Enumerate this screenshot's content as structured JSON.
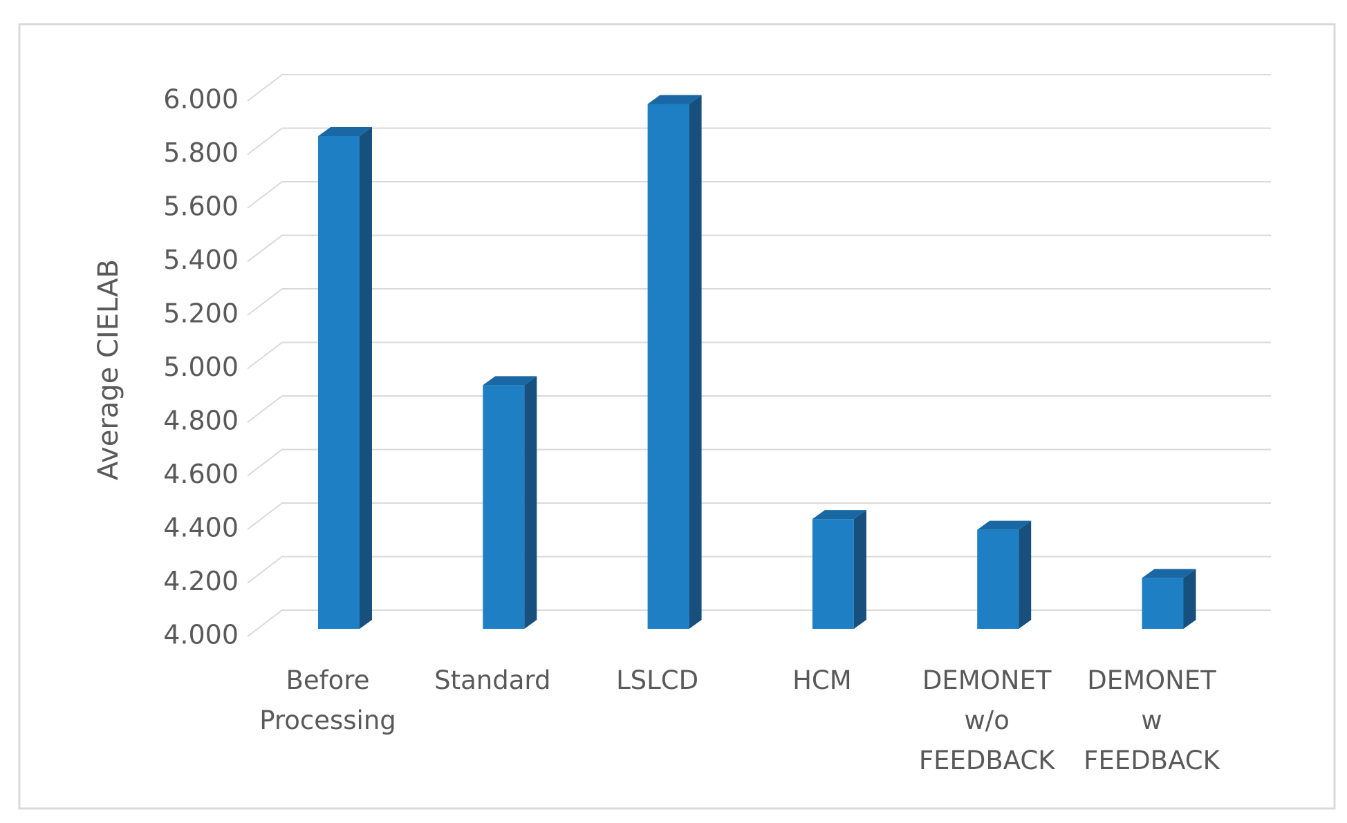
{
  "chart_data": {
    "type": "bar3d",
    "y_label": "Average CIELAB",
    "categories": [
      "Before Processing",
      "Standard",
      "LSLCD",
      "HCM",
      "DEMONET w/o FEEDBACK",
      "DEMONET w FEEDBACK"
    ],
    "values": [
      5.84,
      4.91,
      5.96,
      4.41,
      4.37,
      4.19
    ],
    "color": "#1f7fc4",
    "ylim": [
      4,
      6
    ],
    "yticks": [
      {
        "value": 4,
        "label": "4.000"
      },
      {
        "value": 4.2,
        "label": "4.200"
      },
      {
        "value": 4.4,
        "label": "4.400"
      },
      {
        "value": 4.6,
        "label": "4.600"
      },
      {
        "value": 4.8,
        "label": "4.800"
      },
      {
        "value": 5,
        "label": "5.000"
      },
      {
        "value": 5.2,
        "label": "5.200"
      },
      {
        "value": 5.4,
        "label": "5.400"
      },
      {
        "value": 5.6,
        "label": "5.600"
      },
      {
        "value": 5.8,
        "label": "5.800"
      },
      {
        "value": 6,
        "label": "6.000"
      }
    ],
    "grid": true
  }
}
